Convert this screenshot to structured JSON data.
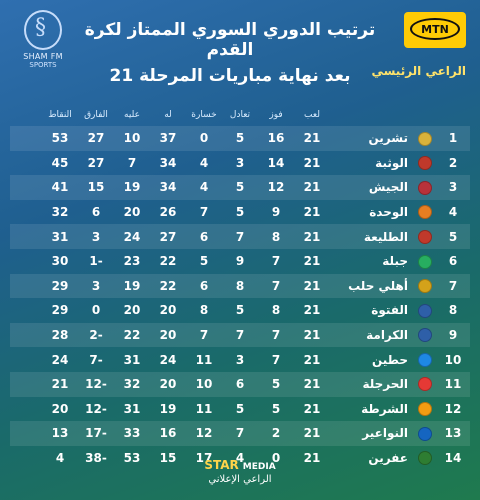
{
  "header": {
    "title_line1": "ترتيب الدوري السوري الممتاز لكرة القدم",
    "title_line2": "بعد نهاية مباريات المرحلة 21",
    "left_logo_name": "SHAM FM",
    "left_logo_sub": "SPORTS",
    "mtn_text": "MTN",
    "sponsor_label": "الراعي الرئيسي"
  },
  "columns": {
    "played": "لعب",
    "won": "فوز",
    "draw": "تعادل",
    "lost": "خسارة",
    "for": "له",
    "against": "عليه",
    "diff": "الفارق",
    "points": "النقاط"
  },
  "teams": [
    {
      "rank": "1",
      "name": "تشرين",
      "played": "21",
      "won": "16",
      "draw": "5",
      "lost": "0",
      "for": "37",
      "against": "10",
      "diff": "27",
      "points": "53",
      "color": "#d9b23a"
    },
    {
      "rank": "2",
      "name": "الوثبة",
      "played": "21",
      "won": "14",
      "draw": "3",
      "lost": "4",
      "for": "34",
      "against": "7",
      "diff": "27",
      "points": "45",
      "color": "#c0392b"
    },
    {
      "rank": "3",
      "name": "الجيش",
      "played": "21",
      "won": "12",
      "draw": "5",
      "lost": "4",
      "for": "34",
      "against": "19",
      "diff": "15",
      "points": "41",
      "color": "#b8323a"
    },
    {
      "rank": "4",
      "name": "الوحدة",
      "played": "21",
      "won": "9",
      "draw": "5",
      "lost": "7",
      "for": "26",
      "against": "20",
      "diff": "6",
      "points": "32",
      "color": "#e67e22"
    },
    {
      "rank": "5",
      "name": "الطليعة",
      "played": "21",
      "won": "8",
      "draw": "7",
      "lost": "6",
      "for": "27",
      "against": "24",
      "diff": "3",
      "points": "31",
      "color": "#c0392b"
    },
    {
      "rank": "6",
      "name": "جبلة",
      "played": "21",
      "won": "7",
      "draw": "9",
      "lost": "5",
      "for": "22",
      "against": "23",
      "diff": "-1",
      "points": "30",
      "color": "#27ae60"
    },
    {
      "rank": "7",
      "name": "أهلي حلب",
      "played": "21",
      "won": "7",
      "draw": "8",
      "lost": "6",
      "for": "22",
      "against": "19",
      "diff": "3",
      "points": "29",
      "color": "#d4a21a"
    },
    {
      "rank": "8",
      "name": "الفتوة",
      "played": "21",
      "won": "8",
      "draw": "5",
      "lost": "8",
      "for": "20",
      "against": "20",
      "diff": "0",
      "points": "29",
      "color": "#2e5fa8"
    },
    {
      "rank": "9",
      "name": "الكرامة",
      "played": "21",
      "won": "7",
      "draw": "7",
      "lost": "7",
      "for": "20",
      "against": "22",
      "diff": "-2",
      "points": "28",
      "color": "#2e5fa8"
    },
    {
      "rank": "10",
      "name": "حطين",
      "played": "21",
      "won": "7",
      "draw": "3",
      "lost": "11",
      "for": "24",
      "against": "31",
      "diff": "-7",
      "points": "24",
      "color": "#1e88e5"
    },
    {
      "rank": "11",
      "name": "الحرجلة",
      "played": "21",
      "won": "5",
      "draw": "6",
      "lost": "10",
      "for": "20",
      "against": "32",
      "diff": "-12",
      "points": "21",
      "color": "#e53935"
    },
    {
      "rank": "12",
      "name": "الشرطة",
      "played": "21",
      "won": "5",
      "draw": "5",
      "lost": "11",
      "for": "19",
      "against": "31",
      "diff": "-12",
      "points": "20",
      "color": "#f39c12"
    },
    {
      "rank": "13",
      "name": "النواعير",
      "played": "21",
      "won": "2",
      "draw": "7",
      "lost": "12",
      "for": "16",
      "against": "33",
      "diff": "-17",
      "points": "13",
      "color": "#1565c0"
    },
    {
      "rank": "14",
      "name": "عفرين",
      "played": "21",
      "won": "0",
      "draw": "4",
      "lost": "17",
      "for": "15",
      "against": "53",
      "diff": "-38",
      "points": "4",
      "color": "#2e7d32"
    }
  ],
  "footer": {
    "brand": "STAR",
    "brand_sub": "MEDIA",
    "label": "الراعي الإعلاني"
  }
}
